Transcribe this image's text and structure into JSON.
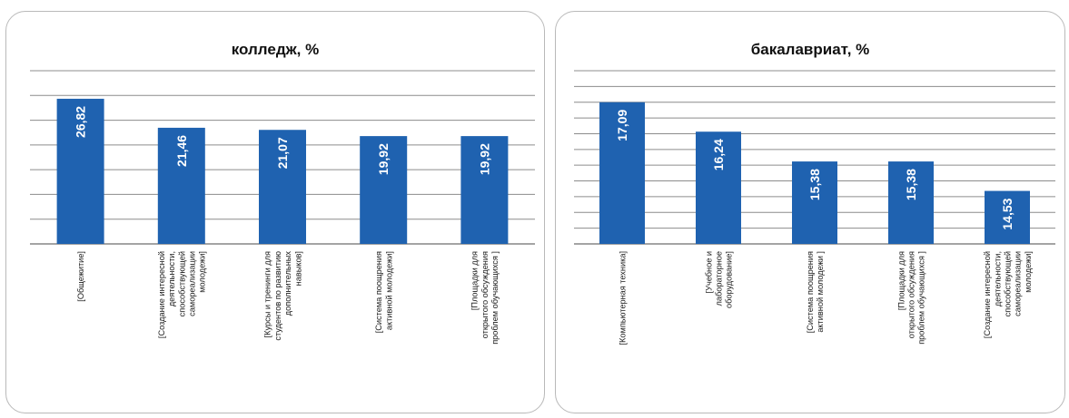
{
  "chart_data": [
    {
      "type": "bar",
      "title": "колледж, %",
      "ylim": [
        0,
        32
      ],
      "grid": true,
      "categories": [
        [
          "[Общежитие]"
        ],
        [
          "[Создание интересной",
          "деятельности,",
          "способствующей",
          "самореализации",
          "молодежи]"
        ],
        [
          "[Курсы и тренинги для",
          "студентов по развитию",
          "дополнительных",
          "навыков]"
        ],
        [
          "[Система поощрения",
          "активной молодежи]"
        ],
        [
          "[Площадки для",
          "открытого обсуждения",
          "проблем обучающихся ]"
        ]
      ],
      "values": [
        26.82,
        21.46,
        21.07,
        19.92,
        19.92
      ],
      "value_labels": [
        "26,82",
        "21,46",
        "21,07",
        "19,92",
        "19,92"
      ]
    },
    {
      "type": "bar",
      "title": "бакалавриат, %",
      "ylim": [
        13,
        18
      ],
      "grid": true,
      "categories": [
        [
          "[Компьютерная техника]"
        ],
        [
          "[Учебное и",
          "лабораторное",
          "оборудование]"
        ],
        [
          "[Система поощрения",
          "активной молодежи ]"
        ],
        [
          "[Площадки для",
          "открытого обсуждения",
          "проблем обучающихся ]"
        ],
        [
          "[Создание интересной",
          "деятельности,",
          "способствующей",
          "самореализации",
          "молодежи]"
        ]
      ],
      "values": [
        17.09,
        16.24,
        15.38,
        15.38,
        14.53
      ],
      "value_labels": [
        "17,09",
        "16,24",
        "15,38",
        "15,38",
        "14,53"
      ]
    }
  ],
  "colors": {
    "bar": "#1f62b0",
    "grid": "#8c8c8c",
    "border": "#b9b9b9"
  }
}
